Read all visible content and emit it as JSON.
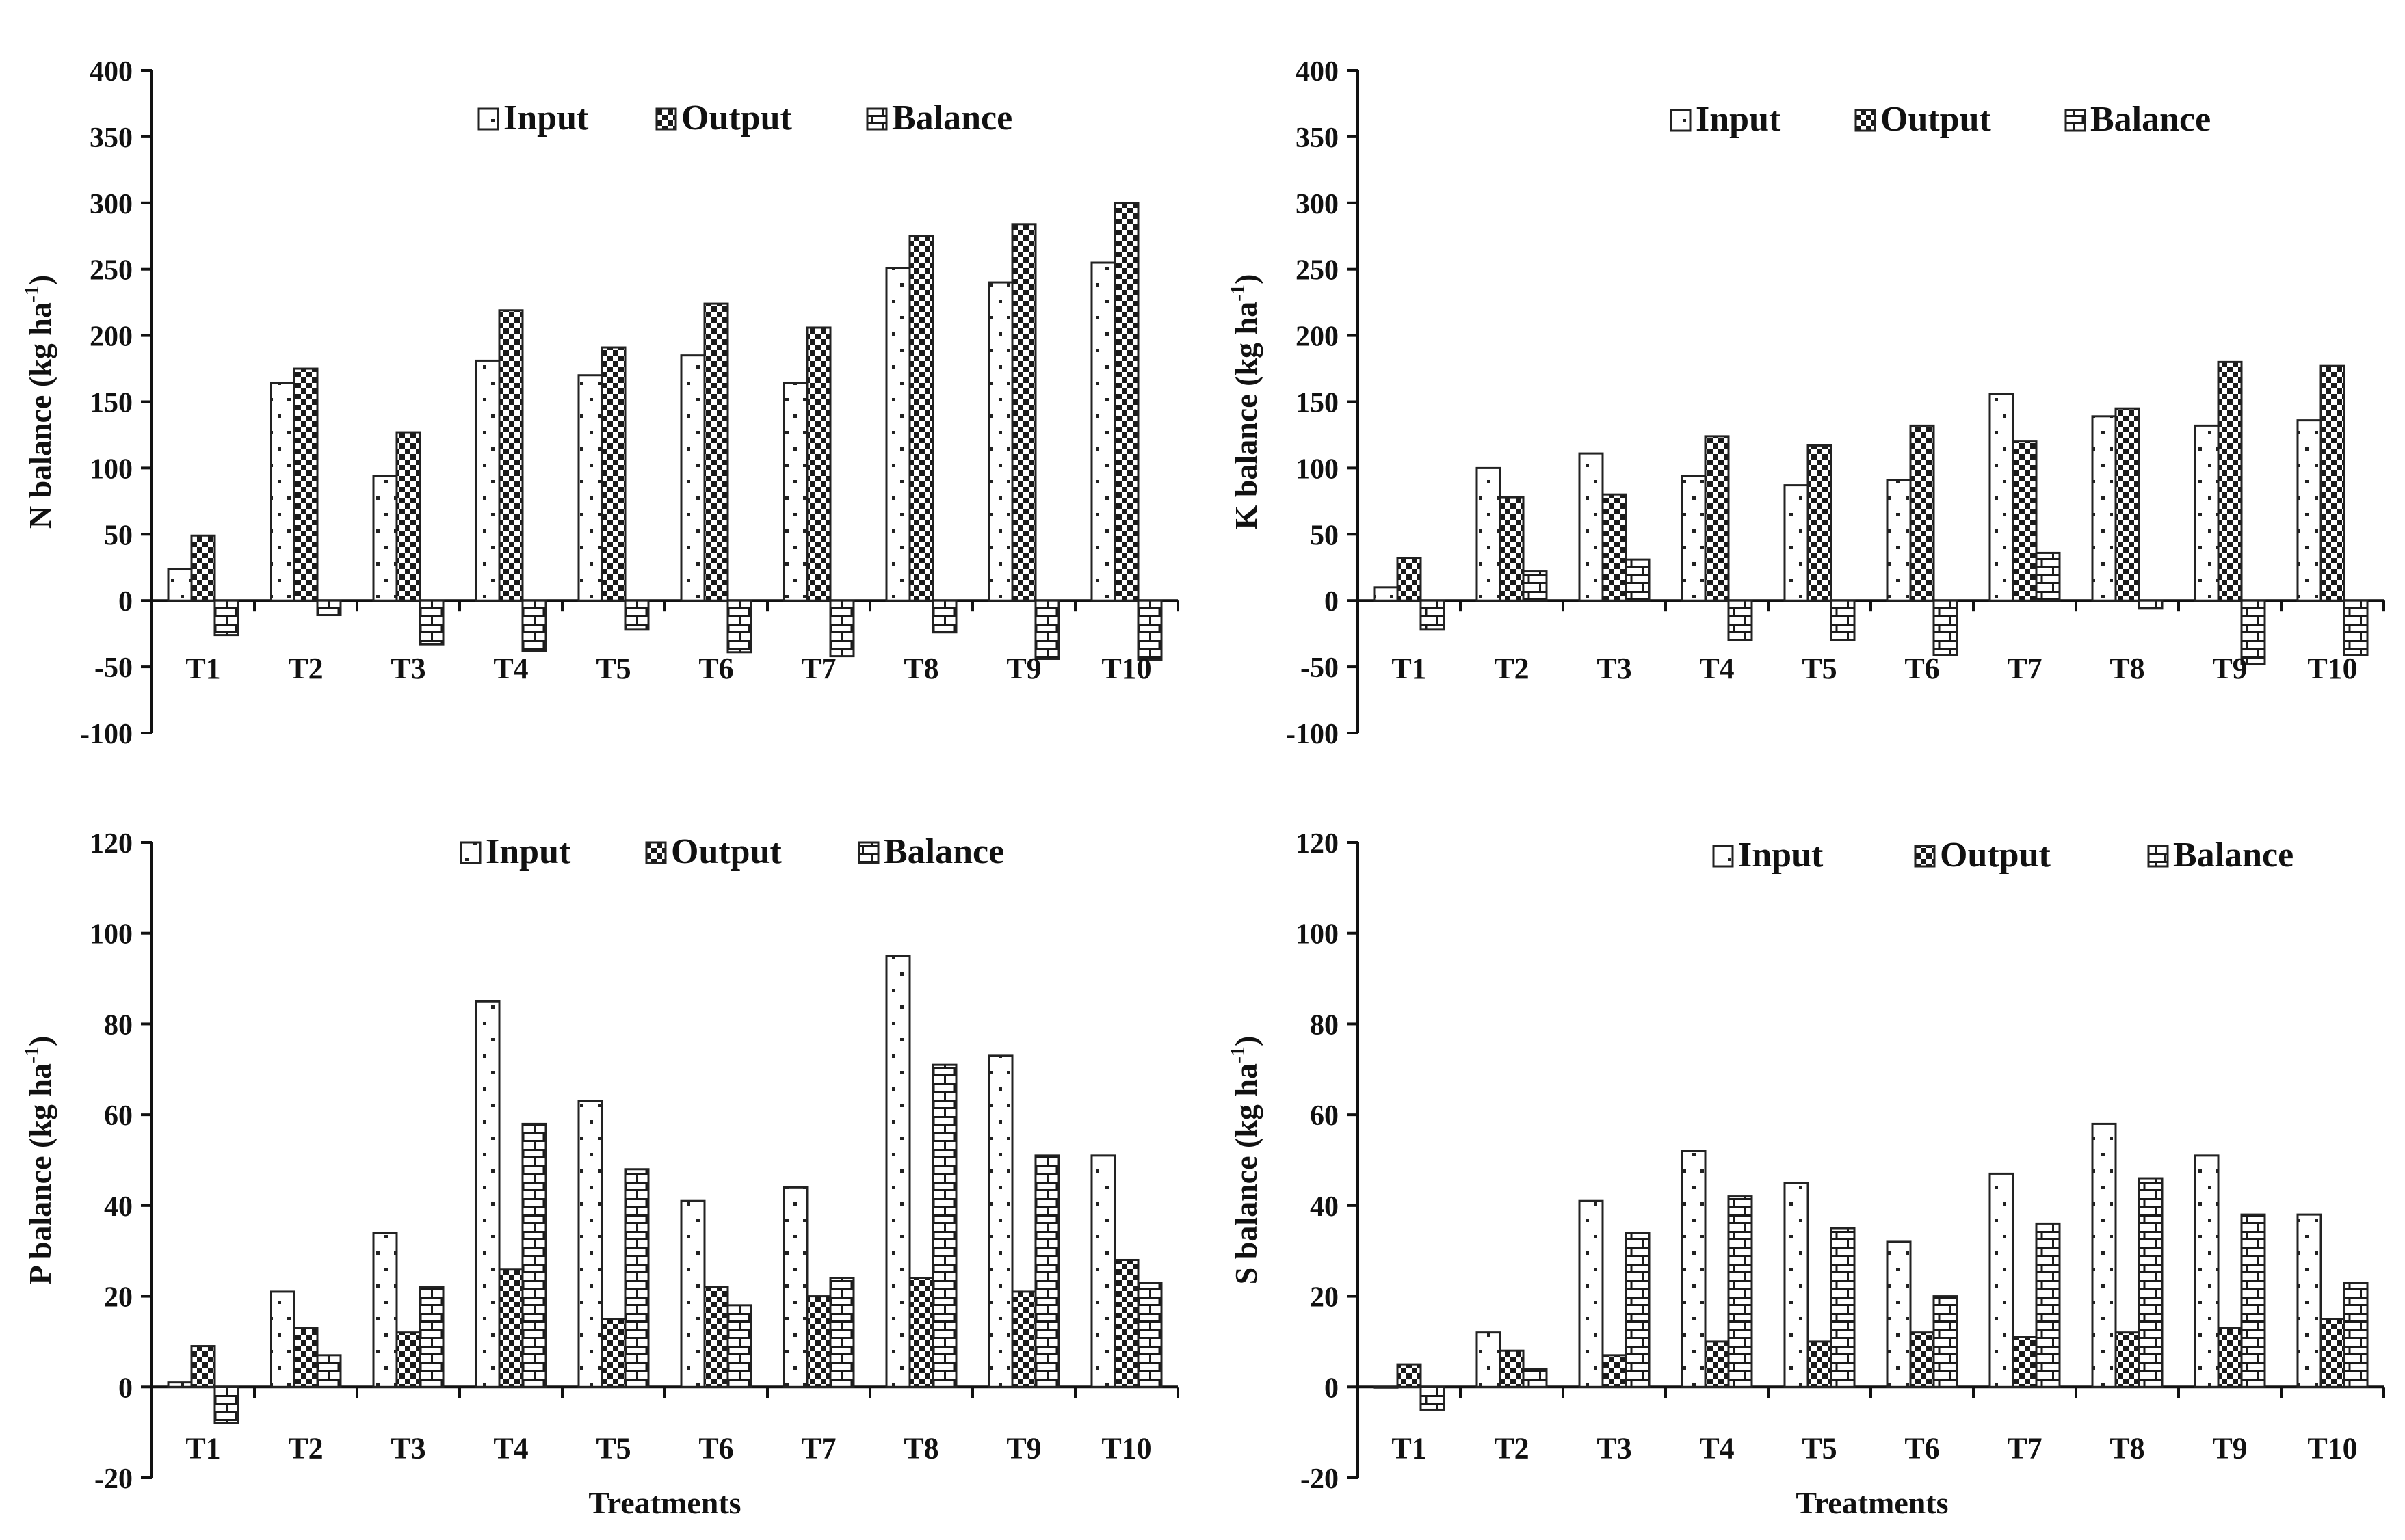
{
  "figure": {
    "xlabel_bottom": "Treatments",
    "colors": {
      "ink": "#111111",
      "bar_fill": "#ffffff"
    }
  },
  "chart_data": [
    {
      "type": "bar",
      "panel": "top-left",
      "ylabel": "N  balance (kg ha",
      "ylabel_sup": "-1",
      "ylabel_close": ")",
      "ylim": [
        -100,
        400
      ],
      "yticks": [
        400,
        350,
        300,
        250,
        200,
        150,
        100,
        50,
        0,
        -50,
        -100
      ],
      "categories": [
        "T1",
        "T2",
        "T3",
        "T4",
        "T5",
        "T6",
        "T7",
        "T8",
        "T9",
        "T10"
      ],
      "legend": [
        "Input",
        "Output",
        "Balance"
      ],
      "legend_placement": "top-center",
      "series": [
        {
          "name": "Input",
          "pattern": "dots",
          "values": [
            24,
            164,
            94,
            181,
            170,
            185,
            164,
            251,
            240,
            255
          ]
        },
        {
          "name": "Output",
          "pattern": "checker",
          "values": [
            49,
            175,
            127,
            219,
            191,
            224,
            206,
            275,
            284,
            300
          ]
        },
        {
          "name": "Balance",
          "pattern": "hbrick",
          "values": [
            -26,
            -11,
            -33,
            -38,
            -22,
            -39,
            -42,
            -24,
            -44,
            -45
          ]
        }
      ]
    },
    {
      "type": "bar",
      "panel": "top-right",
      "ylabel": "K  balance (kg ha",
      "ylabel_sup": "-1",
      "ylabel_close": ")",
      "ylim": [
        -100,
        400
      ],
      "yticks": [
        400,
        350,
        300,
        250,
        200,
        150,
        100,
        50,
        0,
        -50,
        -100
      ],
      "categories": [
        "T1",
        "T2",
        "T3",
        "T4",
        "T5",
        "T6",
        "T7",
        "T8",
        "T9",
        "T10"
      ],
      "legend": [
        "Input",
        "Output",
        "Balance"
      ],
      "legend_placement": "top-center",
      "series": [
        {
          "name": "Input",
          "pattern": "dots",
          "values": [
            10,
            100,
            111,
            94,
            87,
            91,
            156,
            139,
            132,
            136
          ]
        },
        {
          "name": "Output",
          "pattern": "checker",
          "values": [
            32,
            78,
            80,
            124,
            117,
            132,
            120,
            145,
            180,
            177
          ]
        },
        {
          "name": "Balance",
          "pattern": "hbrick",
          "values": [
            -22,
            22,
            31,
            -30,
            -30,
            -41,
            36,
            -6,
            -48,
            -41
          ]
        }
      ]
    },
    {
      "type": "bar",
      "panel": "bottom-left",
      "ylabel": "P  balance (kg ha",
      "ylabel_sup": "-1",
      "ylabel_close": ")",
      "xlabel": "Treatments",
      "ylim": [
        -20,
        120
      ],
      "yticks": [
        120,
        100,
        80,
        60,
        40,
        20,
        0,
        -20
      ],
      "categories": [
        "T1",
        "T2",
        "T3",
        "T4",
        "T5",
        "T6",
        "T7",
        "T8",
        "T9",
        "T10"
      ],
      "legend": [
        "Input",
        "Output",
        "Balance"
      ],
      "legend_placement": "top-center",
      "series": [
        {
          "name": "Input",
          "pattern": "dots",
          "values": [
            1,
            21,
            34,
            85,
            63,
            41,
            44,
            95,
            73,
            51
          ]
        },
        {
          "name": "Output",
          "pattern": "checker",
          "values": [
            9,
            13,
            12,
            26,
            15,
            22,
            20,
            24,
            21,
            28
          ]
        },
        {
          "name": "Balance",
          "pattern": "hbrick",
          "values": [
            -8,
            7,
            22,
            58,
            48,
            18,
            24,
            71,
            51,
            23
          ]
        }
      ]
    },
    {
      "type": "bar",
      "panel": "bottom-right",
      "ylabel": "S  balance (kg ha",
      "ylabel_sup": "-1",
      "ylabel_close": ")",
      "xlabel": "Treatments",
      "ylim": [
        -20,
        120
      ],
      "yticks": [
        120,
        100,
        80,
        60,
        40,
        20,
        0,
        -20
      ],
      "categories": [
        "T1",
        "T2",
        "T3",
        "T4",
        "T5",
        "T6",
        "T7",
        "T8",
        "T9",
        "T10"
      ],
      "legend": [
        "Input",
        "Output",
        "Balance"
      ],
      "legend_placement": "top-center",
      "series": [
        {
          "name": "Input",
          "pattern": "dots",
          "values": [
            0,
            12,
            41,
            52,
            45,
            32,
            47,
            58,
            51,
            38
          ]
        },
        {
          "name": "Output",
          "pattern": "checker",
          "values": [
            5,
            8,
            7,
            10,
            10,
            12,
            11,
            12,
            13,
            15
          ]
        },
        {
          "name": "Balance",
          "pattern": "hbrick",
          "values": [
            -5,
            4,
            34,
            42,
            35,
            20,
            36,
            46,
            38,
            23
          ]
        }
      ]
    }
  ]
}
